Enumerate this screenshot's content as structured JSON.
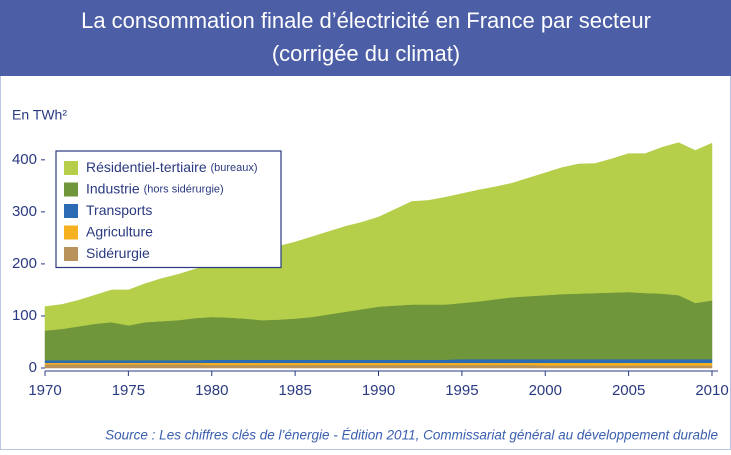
{
  "chart_data": {
    "type": "stacked_area",
    "title": "La consommation finale d’électricité en France par secteur",
    "subtitle": "(corrigée du climat)",
    "y_label": "En TWh²",
    "source": "Source : Les chiffres clés de l’énergie - Édition 2011, Commissariat général au développement durable",
    "x": [
      1970,
      1971,
      1972,
      1973,
      1974,
      1975,
      1976,
      1977,
      1978,
      1979,
      1980,
      1981,
      1982,
      1983,
      1984,
      1985,
      1986,
      1987,
      1988,
      1989,
      1990,
      1991,
      1992,
      1993,
      1994,
      1995,
      1996,
      1997,
      1998,
      1999,
      2000,
      2001,
      2002,
      2003,
      2004,
      2005,
      2006,
      2007,
      2008,
      2009,
      2010
    ],
    "xlim": [
      1970,
      2010
    ],
    "xticks": [
      1970,
      1975,
      1980,
      1985,
      1990,
      1995,
      2000,
      2005,
      2010
    ],
    "ylim": [
      0,
      440
    ],
    "yticks": [
      0,
      100,
      200,
      300,
      400
    ],
    "legend": "upper-left",
    "series": [
      {
        "name": "Sidérurgie",
        "color": "#b8925a",
        "values": [
          7,
          7,
          7,
          7,
          7,
          7,
          7,
          7,
          7,
          7,
          6,
          6,
          6,
          6,
          6,
          6,
          6,
          6,
          6,
          6,
          6,
          6,
          6,
          6,
          6,
          6,
          6,
          6,
          6,
          6,
          5,
          5,
          5,
          5,
          5,
          5,
          5,
          5,
          5,
          5,
          5
        ]
      },
      {
        "name": "Agriculture",
        "color": "#f5b120",
        "values": [
          3,
          3,
          3,
          3,
          3,
          3,
          3,
          3,
          3,
          3,
          4,
          4,
          4,
          4,
          4,
          4,
          4,
          4,
          4,
          4,
          4,
          4,
          4,
          4,
          4,
          4,
          4,
          4,
          4,
          4,
          5,
          5,
          5,
          5,
          5,
          5,
          5,
          5,
          5,
          5,
          5
        ]
      },
      {
        "name": "Transports",
        "color": "#2a6bb4",
        "values": [
          5,
          5,
          5,
          5,
          5,
          5,
          5,
          5,
          5,
          5,
          6,
          6,
          6,
          6,
          6,
          6,
          6,
          6,
          6,
          6,
          6,
          6,
          6,
          6,
          6,
          7,
          7,
          7,
          7,
          7,
          7,
          7,
          7,
          7,
          7,
          7,
          7,
          7,
          7,
          7,
          7
        ]
      },
      {
        "name": "Industrie",
        "note": "(hors sidérurgie)",
        "color": "#6f963a",
        "values": [
          57,
          60,
          65,
          70,
          73,
          67,
          73,
          75,
          77,
          81,
          82,
          81,
          79,
          76,
          77,
          79,
          82,
          87,
          92,
          97,
          102,
          104,
          106,
          106,
          106,
          108,
          111,
          115,
          119,
          121,
          123,
          125,
          126,
          127,
          128,
          129,
          127,
          126,
          123,
          108,
          113
        ]
      },
      {
        "name": "Résidentiel-tertiaire",
        "note": "(bureaux)",
        "color": "#b5cf4a",
        "values": [
          46,
          47,
          50,
          55,
          62,
          68,
          74,
          82,
          88,
          94,
          100,
          111,
          123,
          134,
          141,
          147,
          154,
          159,
          164,
          167,
          172,
          185,
          198,
          200,
          206,
          210,
          214,
          216,
          219,
          227,
          235,
          243,
          249,
          249,
          257,
          266,
          268,
          281,
          293,
          293,
          302
        ]
      }
    ]
  }
}
